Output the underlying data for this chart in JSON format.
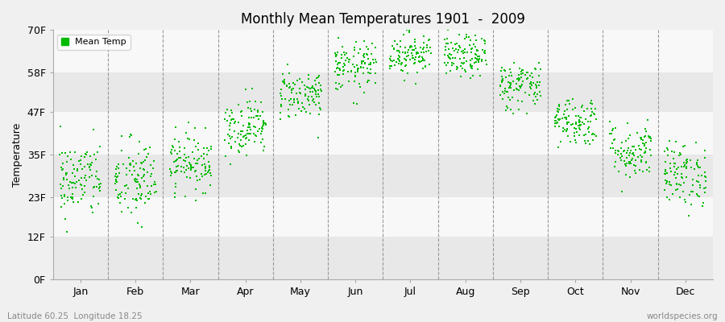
{
  "title": "Monthly Mean Temperatures 1901  -  2009",
  "ylabel": "Temperature",
  "xlabel_bottom_left": "Latitude 60.25  Longitude 18.25",
  "xlabel_bottom_right": "worldspecies.org",
  "legend_label": "Mean Temp",
  "dot_color": "#00bb00",
  "background_color": "#f0f0f0",
  "stripe_light": "#f8f8f8",
  "stripe_dark": "#e8e8e8",
  "ytick_labels": [
    "0F",
    "12F",
    "23F",
    "35F",
    "47F",
    "58F",
    "70F"
  ],
  "ytick_values": [
    0,
    12,
    23,
    35,
    47,
    58,
    70
  ],
  "months": [
    "Jan",
    "Feb",
    "Mar",
    "Apr",
    "May",
    "Jun",
    "Jul",
    "Aug",
    "Sep",
    "Oct",
    "Nov",
    "Dec"
  ],
  "month_centers": [
    0.5,
    1.5,
    2.5,
    3.5,
    4.5,
    5.5,
    6.5,
    7.5,
    8.5,
    9.5,
    10.5,
    11.5
  ],
  "ylim": [
    0,
    70
  ],
  "xlim": [
    0,
    12
  ],
  "n_years": 109,
  "monthly_mean_F": [
    28.0,
    27.5,
    33.0,
    43.0,
    52.0,
    59.5,
    63.5,
    62.5,
    54.5,
    44.5,
    36.0,
    29.5
  ],
  "monthly_std_F": [
    5.5,
    6.0,
    4.0,
    4.0,
    3.5,
    3.5,
    3.0,
    3.0,
    3.5,
    3.5,
    4.0,
    4.5
  ],
  "seed": 42
}
